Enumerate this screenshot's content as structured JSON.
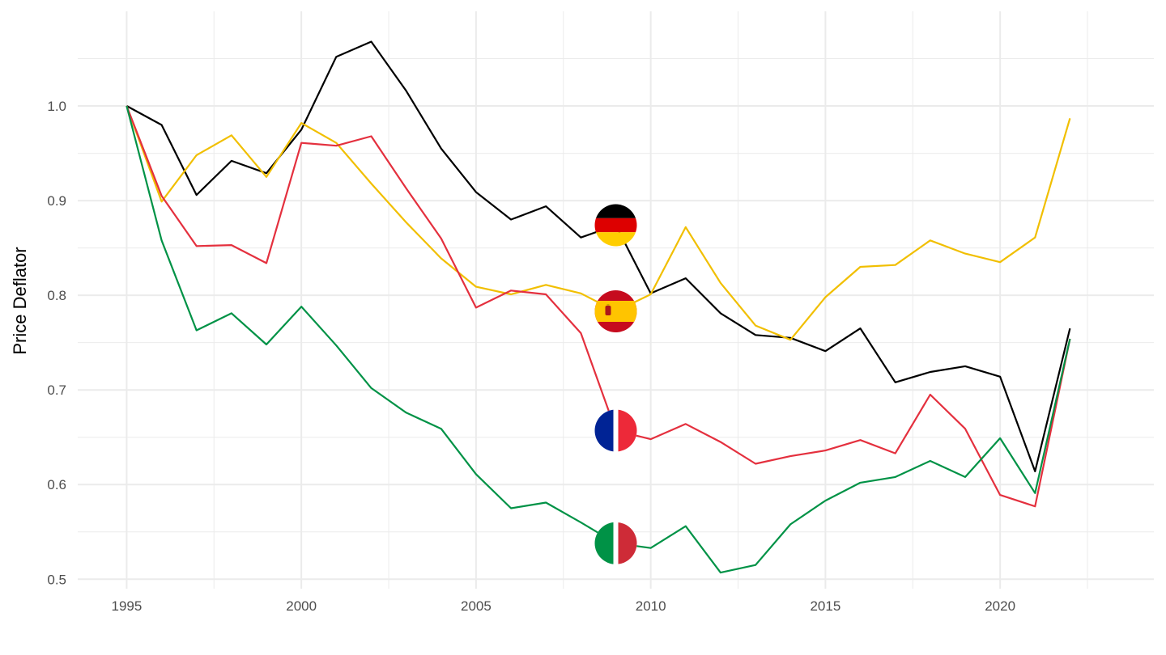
{
  "chart_data": {
    "type": "line",
    "title": "",
    "xlabel": "",
    "ylabel": "Price Deflator",
    "xlim": [
      1993.6,
      2024.4
    ],
    "ylim": [
      0.49,
      1.1
    ],
    "grid": true,
    "x_ticks": [
      1995,
      2000,
      2005,
      2010,
      2015,
      2020
    ],
    "y_ticks": [
      0.5,
      0.6,
      0.7,
      0.8,
      0.9,
      1.0
    ],
    "x_tick_labels": [
      "1995",
      "2000",
      "2005",
      "2010",
      "2015",
      "2020"
    ],
    "y_tick_labels": [
      "0.5",
      "0.6",
      "0.7",
      "0.8",
      "0.9",
      "1.0"
    ],
    "x": [
      1995,
      1996,
      1997,
      1998,
      1999,
      2000,
      2001,
      2002,
      2003,
      2004,
      2005,
      2006,
      2007,
      2008,
      2009,
      2010,
      2011,
      2012,
      2013,
      2014,
      2015,
      2016,
      2017,
      2018,
      2019,
      2020,
      2021,
      2022
    ],
    "series": [
      {
        "color": "#000000",
        "flag": "germany-flag-icon",
        "label_year": 2009,
        "values": [
          1.0,
          0.98,
          0.906,
          0.942,
          0.929,
          0.975,
          1.052,
          1.068,
          1.016,
          0.955,
          0.909,
          0.88,
          0.894,
          0.861,
          0.874,
          0.802,
          0.818,
          0.781,
          0.758,
          0.755,
          0.741,
          0.765,
          0.708,
          0.719,
          0.725,
          0.714,
          0.614,
          0.765
        ]
      },
      {
        "color": "#f1bf00",
        "flag": "spain-flag-icon",
        "label_year": 2009,
        "values": [
          1.0,
          0.899,
          0.948,
          0.969,
          0.925,
          0.982,
          0.961,
          0.918,
          0.877,
          0.839,
          0.809,
          0.801,
          0.811,
          0.802,
          0.783,
          0.801,
          0.872,
          0.813,
          0.768,
          0.753,
          0.798,
          0.83,
          0.832,
          0.858,
          0.844,
          0.835,
          0.861,
          0.987
        ]
      },
      {
        "color": "#e4303e",
        "flag": "france-flag-icon",
        "label_year": 2009,
        "values": [
          1.0,
          0.905,
          0.852,
          0.853,
          0.834,
          0.961,
          0.958,
          0.968,
          0.913,
          0.86,
          0.787,
          0.805,
          0.801,
          0.76,
          0.657,
          0.648,
          0.664,
          0.645,
          0.622,
          0.63,
          0.636,
          0.647,
          0.633,
          0.695,
          0.659,
          0.589,
          0.577,
          0.754
        ]
      },
      {
        "color": "#009246",
        "flag": "italy-flag-icon",
        "label_year": 2009,
        "values": [
          1.0,
          0.858,
          0.763,
          0.781,
          0.748,
          0.788,
          0.747,
          0.702,
          0.676,
          0.659,
          0.611,
          0.575,
          0.581,
          0.56,
          0.538,
          0.533,
          0.556,
          0.507,
          0.515,
          0.558,
          0.583,
          0.602,
          0.608,
          0.625,
          0.608,
          0.649,
          0.591,
          0.754
        ]
      }
    ]
  }
}
